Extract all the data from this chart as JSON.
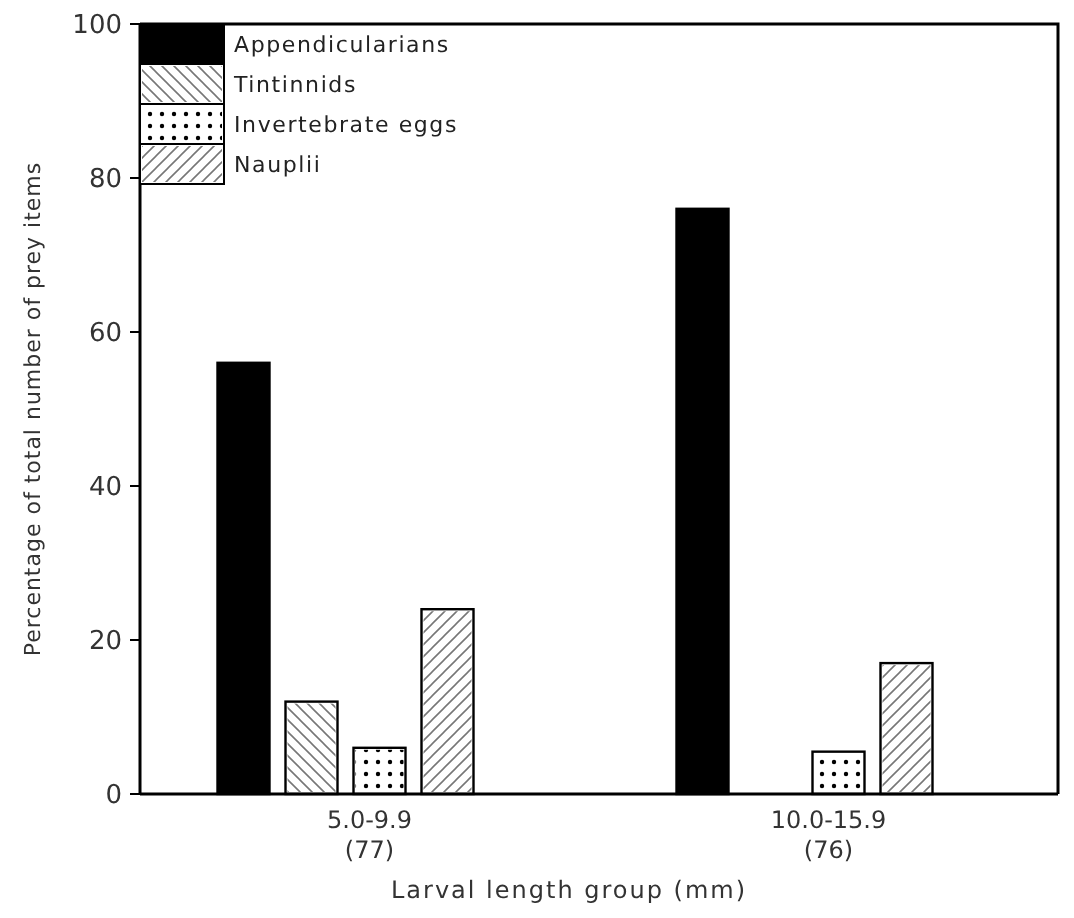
{
  "chart_data": {
    "type": "bar",
    "xlabel": "Larval length group (mm)",
    "ylabel": "Percentage of total number of prey items",
    "categories": [
      "5.0-9.9\n(77)",
      "10.0-15.9\n(76)"
    ],
    "series": [
      {
        "name": "Appendicularians",
        "color": "#000000",
        "values": [
          56,
          76
        ]
      },
      {
        "name": "Tintinnids",
        "color": "#ffffff",
        "values": [
          12,
          null
        ]
      },
      {
        "name": "Invertebrate eggs",
        "color": "#ffffff",
        "values": [
          6,
          5.5
        ]
      },
      {
        "name": "Nauplii",
        "color": "#ffffff",
        "values": [
          24,
          17
        ]
      }
    ],
    "ylim": [
      0,
      100
    ],
    "yticks": [
      0,
      20,
      40,
      60,
      80,
      100
    ],
    "legend": "top left",
    "grid": false
  }
}
